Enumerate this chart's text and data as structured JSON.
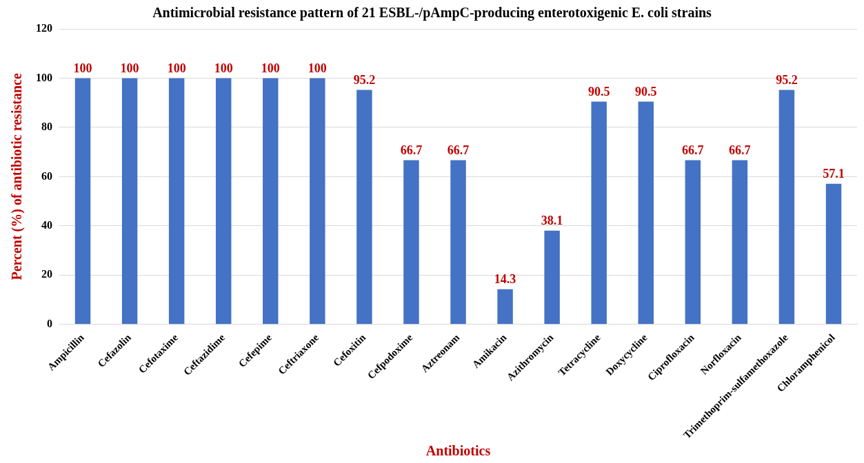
{
  "chart_data": {
    "type": "bar",
    "title": "Antimicrobial resistance pattern of 21 ESBL-/pAmpC-producing enterotoxigenic E. coli strains",
    "xlabel": "Antibiotics",
    "ylabel": "Percent (%) of antibiotic resistance",
    "categories": [
      "Ampicillin",
      "Cefazolin",
      "Cefotaxime",
      "Ceftazidime",
      "Cefepime",
      "Ceftriaxone",
      "Cefoxitin",
      "Cefpodoxime",
      "Aztreonam",
      "Amikacin",
      "Azithromycin",
      "Tetracycline",
      "Doxycycline",
      "Ciprofloxacin",
      "Norfloxacin",
      "Trimethoprim-sulfamethoxazole",
      "Chloramphenicol"
    ],
    "values": [
      100,
      100,
      100,
      100,
      100,
      100,
      95.2,
      66.7,
      66.7,
      14.3,
      38.1,
      90.5,
      90.5,
      66.7,
      66.7,
      95.2,
      57.1
    ],
    "color": "#4472c4",
    "ylim": [
      0,
      120
    ],
    "yticks": [
      0,
      20,
      40,
      60,
      80,
      100,
      120
    ],
    "grid": "y",
    "data_labels": true,
    "legend": false
  }
}
